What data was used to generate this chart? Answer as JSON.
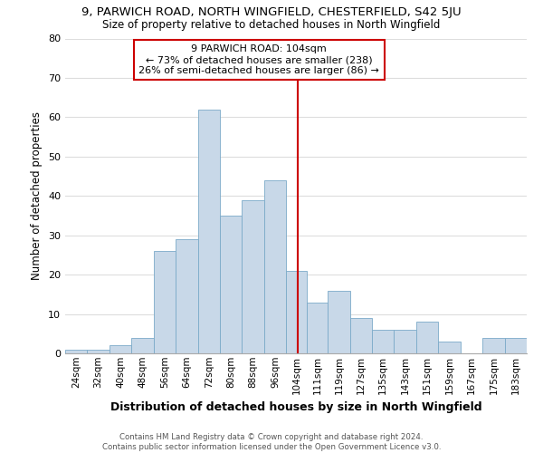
{
  "title": "9, PARWICH ROAD, NORTH WINGFIELD, CHESTERFIELD, S42 5JU",
  "subtitle": "Size of property relative to detached houses in North Wingfield",
  "xlabel": "Distribution of detached houses by size in North Wingfield",
  "ylabel": "Number of detached properties",
  "footer_line1": "Contains HM Land Registry data © Crown copyright and database right 2024.",
  "footer_line2": "Contains public sector information licensed under the Open Government Licence v3.0.",
  "annotation_title": "9 PARWICH ROAD: 104sqm",
  "annotation_line1": "← 73% of detached houses are smaller (238)",
  "annotation_line2": "26% of semi-detached houses are larger (86) →",
  "bar_color": "#c8d8e8",
  "bar_edge_color": "#7baac8",
  "ref_line_color": "#cc0000",
  "ref_line_x": 104,
  "categories": [
    "24sqm",
    "32sqm",
    "40sqm",
    "48sqm",
    "56sqm",
    "64sqm",
    "72sqm",
    "80sqm",
    "88sqm",
    "96sqm",
    "104sqm",
    "111sqm",
    "119sqm",
    "127sqm",
    "135sqm",
    "143sqm",
    "151sqm",
    "159sqm",
    "167sqm",
    "175sqm",
    "183sqm"
  ],
  "bin_edges": [
    20,
    28,
    36,
    44,
    52,
    60,
    68,
    76,
    84,
    92,
    100,
    107.5,
    115,
    123,
    131,
    139,
    147,
    155,
    163,
    171,
    179,
    187
  ],
  "counts": [
    1,
    1,
    2,
    4,
    26,
    29,
    62,
    35,
    39,
    44,
    21,
    13,
    16,
    9,
    6,
    6,
    8,
    3,
    0,
    4,
    4
  ],
  "ylim": [
    0,
    80
  ],
  "yticks": [
    0,
    10,
    20,
    30,
    40,
    50,
    60,
    70,
    80
  ],
  "background_color": "#ffffff",
  "grid_color": "#dddddd"
}
